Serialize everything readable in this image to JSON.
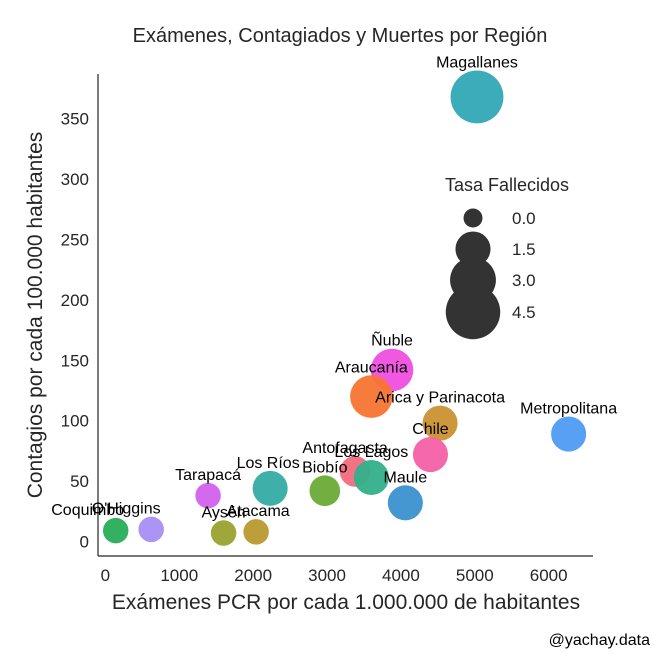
{
  "chart_data": {
    "type": "scatter",
    "title": "Exámenes, Contagiados y Muertes por Región",
    "xlabel": "Exámenes PCR por cada 1.000.000 de habitantes",
    "ylabel": "Contagios por cada 100.000 habitantes",
    "xlim": [
      -100,
      6600
    ],
    "ylim": [
      -12,
      387
    ],
    "xticks": [
      0,
      1000,
      2000,
      3000,
      4000,
      5000,
      6000
    ],
    "yticks": [
      0,
      50,
      100,
      150,
      200,
      250,
      300,
      350
    ],
    "grid": false,
    "legend": {
      "title": "Tasa Fallecidos",
      "placement": "right",
      "sizes": [
        {
          "label": "0.0",
          "value": 0.0
        },
        {
          "label": "1.5",
          "value": 1.5
        },
        {
          "label": "3.0",
          "value": 3.0
        },
        {
          "label": "4.5",
          "value": 4.5
        }
      ]
    },
    "points": [
      {
        "name": "Magallanes",
        "x": 5030,
        "y": 368,
        "rate": 4.2,
        "color": "#31a8b6"
      },
      {
        "name": "Ñuble",
        "x": 3880,
        "y": 142,
        "rate": 2.5,
        "color": "#f04fe0"
      },
      {
        "name": "Araucanía",
        "x": 3600,
        "y": 120,
        "rate": 2.5,
        "color": "#f77532"
      },
      {
        "name": "Arica y Parinacota",
        "x": 4530,
        "y": 98,
        "rate": 1.5,
        "color": "#c99230"
      },
      {
        "name": "Metropolitana",
        "x": 6270,
        "y": 89,
        "rate": 1.5,
        "color": "#4e9bf2"
      },
      {
        "name": "Chile",
        "x": 4400,
        "y": 72,
        "rate": 1.5,
        "color": "#f560a8"
      },
      {
        "name": "Antofagasta",
        "x": 3380,
        "y": 58,
        "rate": 1.0,
        "color": "#f26b7e"
      },
      {
        "name": "Los Lagos",
        "x": 3600,
        "y": 53,
        "rate": 1.5,
        "color": "#33b08a"
      },
      {
        "name": "Los Ríos",
        "x": 2230,
        "y": 44,
        "rate": 1.5,
        "color": "#35aba4"
      },
      {
        "name": "Biobío",
        "x": 2970,
        "y": 42,
        "rate": 1.0,
        "color": "#6bab36"
      },
      {
        "name": "Tarapacá",
        "x": 1390,
        "y": 38,
        "rate": 0.5,
        "color": "#d361ec"
      },
      {
        "name": "Maule",
        "x": 4060,
        "y": 32,
        "rate": 1.5,
        "color": "#3a91ce"
      },
      {
        "name": "Coquimbo",
        "x": 140,
        "y": 9,
        "rate": 0.5,
        "color": "#27ad58"
      },
      {
        "name": "O'Higgins",
        "x": 620,
        "y": 10,
        "rate": 0.5,
        "color": "#a68ef2"
      },
      {
        "name": "Aysén",
        "x": 1600,
        "y": 7,
        "rate": 0.5,
        "color": "#9aa22f"
      },
      {
        "name": "Atacama",
        "x": 2040,
        "y": 8,
        "rate": 0.5,
        "color": "#b89a2e"
      }
    ]
  },
  "credit": "@yachay.data"
}
